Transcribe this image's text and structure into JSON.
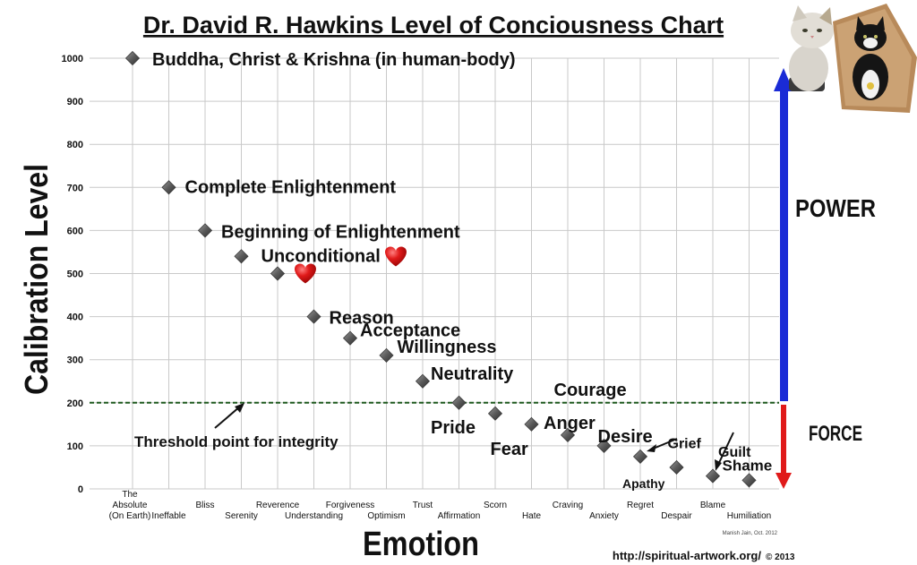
{
  "colors": {
    "power": "#1a2bd6",
    "force": "#e01a1a",
    "threshold_line": "#1f5a1f",
    "marker": "#6b6b6b",
    "heart": "#d11a1a",
    "grid": "#c9c9c9"
  },
  "labels": {
    "power": "POWER",
    "force": "FORCE",
    "threshold": "Threshold point for integrity",
    "footer_url": "http://spiritual-artwork.org/",
    "footer_copy": "© 2013",
    "credit": "Manish Jain, Oct. 2012"
  },
  "icons": [
    "heart-icon",
    "heart-icon",
    "cat-photo-icon",
    "cat-photo-icon"
  ],
  "chart_data": {
    "type": "scatter",
    "title": "Dr. David R. Hawkins Level of Conciousness Chart",
    "xlabel": "Emotion",
    "ylabel": "Calibration Level",
    "ylim": [
      0,
      1000
    ],
    "yticks": [
      0,
      100,
      200,
      300,
      400,
      500,
      600,
      700,
      800,
      900,
      1000
    ],
    "grid": true,
    "categories": [
      "The Absolute (On Earth)",
      "Ineffable",
      "Bliss",
      "Serenity",
      "Reverence",
      "Understanding",
      "Forgiveness",
      "Optimism",
      "Trust",
      "Affirmation",
      "Scorn",
      "Hate",
      "Craving",
      "Anxiety",
      "Regret",
      "Despair",
      "Blame",
      "Humiliation"
    ],
    "category_lines": [
      [
        "The",
        "Absolute",
        "(On Earth)"
      ],
      [
        "Ineffable"
      ],
      [
        "Bliss"
      ],
      [
        "Serenity"
      ],
      [
        "Reverence"
      ],
      [
        "Understanding"
      ],
      [
        "Forgiveness"
      ],
      [
        "Optimism"
      ],
      [
        "Trust"
      ],
      [
        "Affirmation"
      ],
      [
        "Scorn"
      ],
      [
        "Hate"
      ],
      [
        "Craving"
      ],
      [
        "Anxiety"
      ],
      [
        "Regret"
      ],
      [
        "Despair"
      ],
      [
        "Blame"
      ],
      [
        "Humiliation"
      ]
    ],
    "values": [
      1000,
      700,
      600,
      540,
      500,
      400,
      350,
      310,
      250,
      200,
      175,
      150,
      125,
      100,
      75,
      50,
      30,
      20
    ],
    "point_labels": [
      "Buddha, Christ & Krishna (in human-body)",
      "Complete Enlightenment",
      "Beginning of Enlightenment",
      "Unconditional",
      "",
      "Reason",
      "Acceptance",
      "Willingness",
      "Neutrality",
      "Courage",
      "Pride",
      "Fear",
      "Anger",
      "Desire",
      "Apathy",
      "Grief",
      "Guilt",
      "Shame"
    ],
    "threshold": 200
  }
}
